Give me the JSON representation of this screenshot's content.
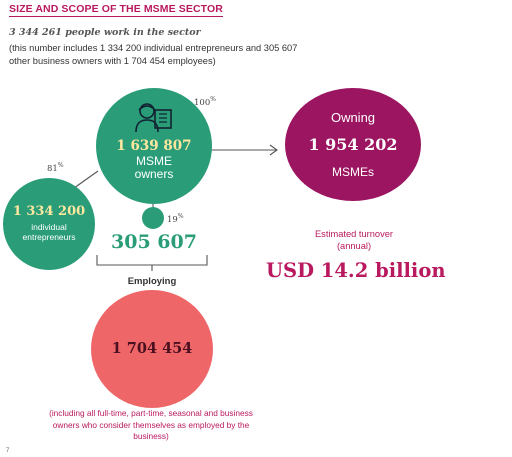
{
  "header": {
    "title": "SIZE AND SCOPE OF THE MSME SECTOR"
  },
  "intro": {
    "headline": "3 344 261 people work in the sector",
    "note": "(this number includes 1 334 200 individual entrepreneurs and 305 607 other business owners with 1 704 454 employees)"
  },
  "owners": {
    "value": "1 639 807",
    "label_line1": "MSME",
    "label_line2": "owners",
    "pct": "100",
    "pct_sign": "%"
  },
  "individuals": {
    "value": "1 334 200",
    "label_line1": "individual",
    "label_line2": "entrepreneurs",
    "pct": "81",
    "pct_sign": "%"
  },
  "others": {
    "value": "305 607",
    "pct": "19",
    "pct_sign": "%"
  },
  "owning": {
    "title": "Owning",
    "value": "1 954 202",
    "label": "MSMEs"
  },
  "turnover": {
    "label_line1": "Estimated turnover",
    "label_line2": "(annual)",
    "value": "USD 14.2 billion"
  },
  "employing": {
    "label": "Employing",
    "value": "1 704 454",
    "note": "(including all full-time, part-time, seasonal and business owners who consider themselves as employed by the business)"
  },
  "page_number": "7",
  "colors": {
    "green": "#2a9d78",
    "magenta": "#9c1561",
    "coral": "#ef6668",
    "accent": "#b9195e"
  }
}
